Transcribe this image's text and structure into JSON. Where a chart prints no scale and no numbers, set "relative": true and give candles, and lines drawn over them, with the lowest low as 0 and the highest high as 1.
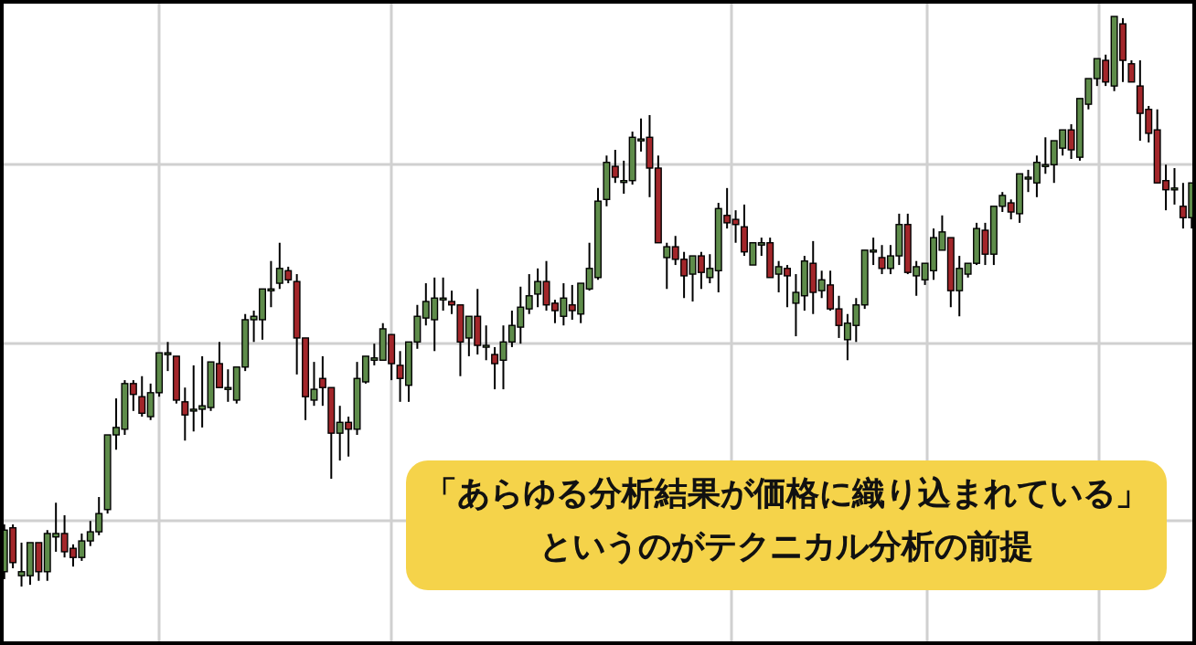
{
  "chart_data": {
    "type": "candlestick",
    "relative": true,
    "grid": true,
    "categories": [
      null,
      null,
      null,
      null,
      null,
      null,
      null,
      null,
      null,
      null,
      null,
      null,
      null,
      null,
      null,
      null,
      null,
      null,
      null,
      null,
      null,
      null,
      null,
      null,
      null,
      null,
      null,
      null,
      null,
      null,
      null,
      null,
      null,
      null,
      null,
      null,
      null,
      null,
      null,
      null,
      null,
      null,
      null,
      null,
      null,
      null,
      null,
      null,
      null,
      null,
      null,
      null,
      null,
      null,
      null,
      null,
      null,
      null,
      null,
      null,
      null,
      null,
      null,
      null,
      null,
      null,
      null,
      null,
      null,
      null,
      null,
      null,
      null,
      null,
      null,
      null,
      null,
      null,
      null,
      null,
      null,
      null,
      null,
      null,
      null,
      null,
      null,
      null,
      null,
      null,
      null,
      null,
      null,
      null,
      null,
      null,
      null,
      null,
      null,
      null,
      null,
      null,
      null,
      null,
      null,
      null,
      null,
      null,
      null,
      null,
      null,
      null,
      null,
      null,
      null,
      null,
      null,
      null,
      null,
      null,
      null,
      null,
      null,
      null,
      null,
      null,
      null,
      null,
      null,
      null,
      null,
      null,
      null,
      null,
      null,
      null,
      null,
      null,
      null
    ],
    "ohlc": [
      [
        0.026,
        0.109,
        0.013,
        0.099
      ],
      [
        0.103,
        0.109,
        0.032,
        0.042
      ],
      [
        0.019,
        0.077,
        0,
        0.026
      ],
      [
        0.019,
        0.077,
        0.003,
        0.077
      ],
      [
        0.077,
        0.077,
        0.01,
        0.026
      ],
      [
        0.026,
        0.099,
        0.01,
        0.093
      ],
      [
        0.087,
        0.147,
        0.061,
        0.093
      ],
      [
        0.093,
        0.125,
        0.051,
        0.061
      ],
      [
        0.067,
        0.074,
        0.035,
        0.051
      ],
      [
        0.051,
        0.093,
        0.045,
        0.08
      ],
      [
        0.08,
        0.115,
        0.071,
        0.096
      ],
      [
        0.096,
        0.157,
        0.09,
        0.128
      ],
      [
        0.135,
        0.266,
        0.128,
        0.266
      ],
      [
        0.266,
        0.33,
        0.24,
        0.279
      ],
      [
        0.276,
        0.362,
        0.266,
        0.356
      ],
      [
        0.356,
        0.362,
        0.308,
        0.337
      ],
      [
        0.333,
        0.369,
        0.298,
        0.304
      ],
      [
        0.298,
        0.356,
        0.292,
        0.34
      ],
      [
        0.34,
        0.41,
        0.333,
        0.41
      ],
      [
        0.407,
        0.429,
        0.378,
        0.41
      ],
      [
        0.404,
        0.404,
        0.321,
        0.327
      ],
      [
        0.324,
        0.349,
        0.256,
        0.301
      ],
      [
        0.311,
        0.388,
        0.272,
        0.311
      ],
      [
        0.311,
        0.404,
        0.279,
        0.317
      ],
      [
        0.314,
        0.394,
        0.308,
        0.394
      ],
      [
        0.391,
        0.429,
        0.349,
        0.349
      ],
      [
        0.349,
        0.381,
        0.324,
        0.349
      ],
      [
        0.327,
        0.385,
        0.321,
        0.385
      ],
      [
        0.385,
        0.478,
        0.378,
        0.468
      ],
      [
        0.468,
        0.484,
        0.429,
        0.474
      ],
      [
        0.468,
        0.522,
        0.433,
        0.522
      ],
      [
        0.522,
        0.571,
        0.49,
        0.522
      ],
      [
        0.532,
        0.603,
        0.522,
        0.558
      ],
      [
        0.554,
        0.561,
        0.532,
        0.538
      ],
      [
        0.535,
        0.548,
        0.372,
        0.436
      ],
      [
        0.436,
        0.436,
        0.292,
        0.333
      ],
      [
        0.327,
        0.394,
        0.317,
        0.346
      ],
      [
        0.365,
        0.404,
        0.317,
        0.349
      ],
      [
        0.349,
        0.349,
        0.189,
        0.269
      ],
      [
        0.269,
        0.317,
        0.221,
        0.288
      ],
      [
        0.288,
        0.298,
        0.228,
        0.276
      ],
      [
        0.276,
        0.394,
        0.266,
        0.365
      ],
      [
        0.359,
        0.404,
        0.356,
        0.404
      ],
      [
        0.397,
        0.426,
        0.388,
        0.401
      ],
      [
        0.397,
        0.462,
        0.397,
        0.452
      ],
      [
        0.442,
        0.442,
        0.362,
        0.391
      ],
      [
        0.388,
        0.413,
        0.324,
        0.365
      ],
      [
        0.353,
        0.429,
        0.324,
        0.429
      ],
      [
        0.429,
        0.494,
        0.417,
        0.474
      ],
      [
        0.471,
        0.532,
        0.458,
        0.5
      ],
      [
        0.468,
        0.542,
        0.413,
        0.506
      ],
      [
        0.503,
        0.542,
        0.484,
        0.506
      ],
      [
        0.5,
        0.519,
        0.478,
        0.494
      ],
      [
        0.494,
        0.494,
        0.369,
        0.429
      ],
      [
        0.436,
        0.474,
        0.404,
        0.474
      ],
      [
        0.474,
        0.522,
        0.407,
        0.423
      ],
      [
        0.42,
        0.458,
        0.397,
        0.423
      ],
      [
        0.407,
        0.42,
        0.346,
        0.391
      ],
      [
        0.397,
        0.458,
        0.346,
        0.429
      ],
      [
        0.429,
        0.484,
        0.42,
        0.458
      ],
      [
        0.455,
        0.526,
        0.426,
        0.49
      ],
      [
        0.487,
        0.548,
        0.478,
        0.51
      ],
      [
        0.513,
        0.558,
        0.49,
        0.535
      ],
      [
        0.535,
        0.571,
        0.484,
        0.494
      ],
      [
        0.497,
        0.503,
        0.462,
        0.484
      ],
      [
        0.474,
        0.532,
        0.458,
        0.506
      ],
      [
        0.494,
        0.529,
        0.468,
        0.484
      ],
      [
        0.478,
        0.532,
        0.462,
        0.532
      ],
      [
        0.522,
        0.603,
        0.519,
        0.558
      ],
      [
        0.542,
        0.699,
        0.538,
        0.676
      ],
      [
        0.679,
        0.756,
        0.667,
        0.744
      ],
      [
        0.737,
        0.766,
        0.708,
        0.718
      ],
      [
        0.712,
        0.747,
        0.689,
        0.712
      ],
      [
        0.712,
        0.798,
        0.705,
        0.788
      ],
      [
        0.785,
        0.821,
        0.763,
        0.785
      ],
      [
        0.788,
        0.827,
        0.683,
        0.734
      ],
      [
        0.734,
        0.756,
        0.603,
        0.603
      ],
      [
        0.577,
        0.603,
        0.522,
        0.596
      ],
      [
        0.596,
        0.615,
        0.564,
        0.574
      ],
      [
        0.574,
        0.587,
        0.506,
        0.545
      ],
      [
        0.548,
        0.58,
        0.5,
        0.58
      ],
      [
        0.58,
        0.587,
        0.522,
        0.551
      ],
      [
        0.542,
        0.583,
        0.532,
        0.558
      ],
      [
        0.554,
        0.673,
        0.516,
        0.663
      ],
      [
        0.651,
        0.699,
        0.628,
        0.638
      ],
      [
        0.644,
        0.66,
        0.603,
        0.635
      ],
      [
        0.631,
        0.67,
        0.58,
        0.587
      ],
      [
        0.564,
        0.603,
        0.564,
        0.603
      ],
      [
        0.599,
        0.612,
        0.58,
        0.603
      ],
      [
        0.603,
        0.612,
        0.542,
        0.542
      ],
      [
        0.548,
        0.571,
        0.516,
        0.561
      ],
      [
        0.558,
        0.564,
        0.49,
        0.545
      ],
      [
        0.497,
        0.548,
        0.439,
        0.516
      ],
      [
        0.51,
        0.58,
        0.484,
        0.571
      ],
      [
        0.567,
        0.606,
        0.478,
        0.516
      ],
      [
        0.519,
        0.554,
        0.506,
        0.538
      ],
      [
        0.529,
        0.554,
        0.484,
        0.487
      ],
      [
        0.487,
        0.51,
        0.436,
        0.458
      ],
      [
        0.433,
        0.478,
        0.397,
        0.462
      ],
      [
        0.458,
        0.506,
        0.429,
        0.494
      ],
      [
        0.494,
        0.59,
        0.487,
        0.59
      ],
      [
        0.59,
        0.612,
        0.564,
        0.59
      ],
      [
        0.577,
        0.599,
        0.548,
        0.558
      ],
      [
        0.558,
        0.599,
        0.548,
        0.58
      ],
      [
        0.58,
        0.654,
        0.564,
        0.635
      ],
      [
        0.635,
        0.654,
        0.548,
        0.551
      ],
      [
        0.545,
        0.571,
        0.51,
        0.561
      ],
      [
        0.538,
        0.567,
        0.529,
        0.567
      ],
      [
        0.554,
        0.628,
        0.538,
        0.612
      ],
      [
        0.59,
        0.651,
        0.59,
        0.622
      ],
      [
        0.612,
        0.612,
        0.49,
        0.519
      ],
      [
        0.519,
        0.58,
        0.474,
        0.558
      ],
      [
        0.548,
        0.567,
        0.542,
        0.567
      ],
      [
        0.567,
        0.638,
        0.564,
        0.628
      ],
      [
        0.625,
        0.638,
        0.564,
        0.583
      ],
      [
        0.583,
        0.667,
        0.564,
        0.667
      ],
      [
        0.667,
        0.692,
        0.657,
        0.686
      ],
      [
        0.673,
        0.679,
        0.644,
        0.657
      ],
      [
        0.654,
        0.724,
        0.638,
        0.724
      ],
      [
        0.718,
        0.731,
        0.692,
        0.718
      ],
      [
        0.708,
        0.756,
        0.683,
        0.744
      ],
      [
        0.74,
        0.788,
        0.724,
        0.74
      ],
      [
        0.74,
        0.782,
        0.708,
        0.782
      ],
      [
        0.769,
        0.801,
        0.756,
        0.801
      ],
      [
        0.801,
        0.811,
        0.75,
        0.766
      ],
      [
        0.753,
        0.856,
        0.747,
        0.856
      ],
      [
        0.846,
        0.891,
        0.837,
        0.891
      ],
      [
        0.891,
        0.926,
        0.878,
        0.926
      ],
      [
        0.923,
        0.933,
        0.878,
        0.885
      ],
      [
        0.878,
        1,
        0.869,
        1
      ],
      [
        0.987,
        0.997,
        0.885,
        0.923
      ],
      [
        0.917,
        0.923,
        0.885,
        0.885
      ],
      [
        0.878,
        0.923,
        0.782,
        0.83
      ],
      [
        0.837,
        0.843,
        0.779,
        0.795
      ],
      [
        0.801,
        0.837,
        0.708,
        0.708
      ],
      [
        0.712,
        0.74,
        0.66,
        0.696
      ],
      [
        0.699,
        0.734,
        0.67,
        0.699
      ],
      [
        0.667,
        0.708,
        0.628,
        0.647
      ],
      [
        0.647,
        0.708,
        0.628,
        0.708
      ]
    ],
    "annotations": [
      "「あらゆる分析結果が価格に織り込まれている」",
      "というのがテクニカル分析の前提"
    ]
  }
}
